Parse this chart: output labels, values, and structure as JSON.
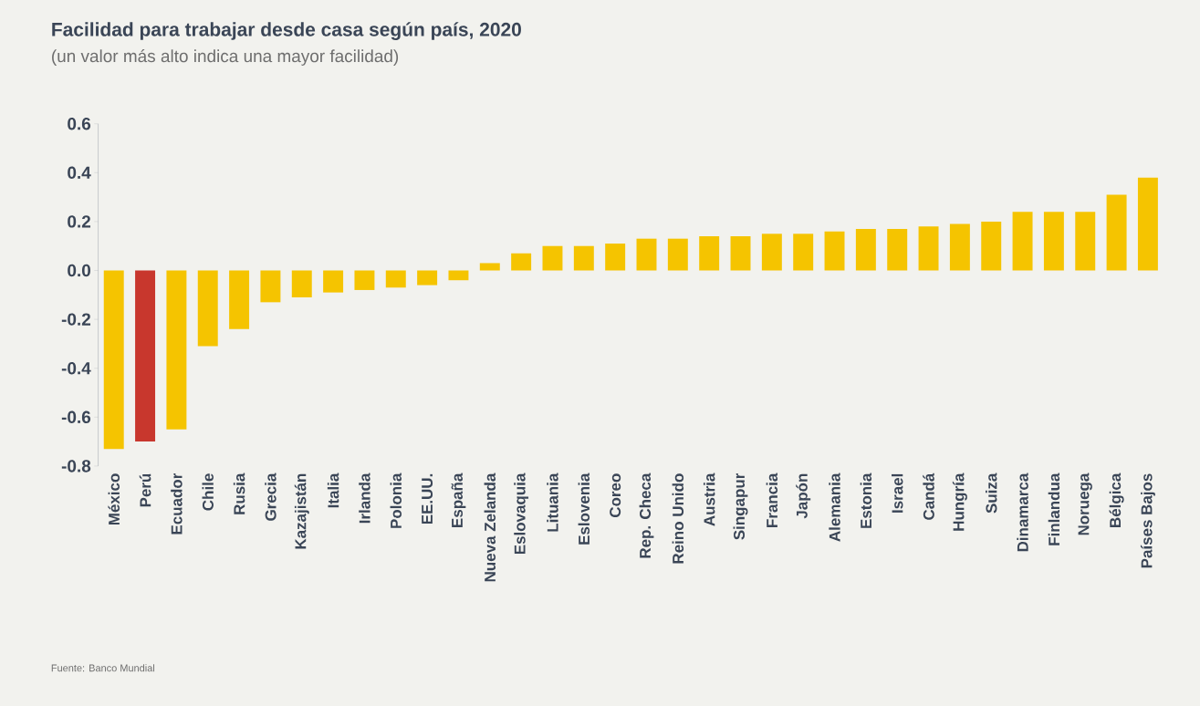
{
  "chart_data": {
    "type": "bar",
    "title": "Facilidad para trabajar desde casa según país, 2020",
    "subtitle": "(un valor más alto indica una mayor facilidad)",
    "categories": [
      "México",
      "Perú",
      "Ecuador",
      "Chile",
      "Rusia",
      "Grecia",
      "Kazajistán",
      "Italia",
      "Irlanda",
      "Polonia",
      "EE.UU.",
      "España",
      "Nueva Zelanda",
      "Eslovaquia",
      "Lituania",
      "Eslovenia",
      "Coreo",
      "Rep. Checa",
      "Reino Unido",
      "Austria",
      "Singapur",
      "Francia",
      "Japón",
      "Alemania",
      "Estonia",
      "Israel",
      "Candá",
      "Hungría",
      "Suiza",
      "Dinamarca",
      "Finlandua",
      "Noruega",
      "Bélgica",
      "Países Bajos"
    ],
    "values": [
      -0.73,
      -0.7,
      -0.65,
      -0.31,
      -0.24,
      -0.13,
      -0.11,
      -0.09,
      -0.08,
      -0.07,
      -0.06,
      -0.04,
      0.03,
      0.07,
      0.1,
      0.1,
      0.11,
      0.13,
      0.13,
      0.14,
      0.14,
      0.15,
      0.15,
      0.16,
      0.17,
      0.17,
      0.18,
      0.19,
      0.2,
      0.24,
      0.24,
      0.24,
      0.31,
      0.38
    ],
    "colors": [
      "#f5c400",
      "#c8372d",
      "#f5c400",
      "#f5c400",
      "#f5c400",
      "#f5c400",
      "#f5c400",
      "#f5c400",
      "#f5c400",
      "#f5c400",
      "#f5c400",
      "#f5c400",
      "#f5c400",
      "#f5c400",
      "#f5c400",
      "#f5c400",
      "#f5c400",
      "#f5c400",
      "#f5c400",
      "#f5c400",
      "#f5c400",
      "#f5c400",
      "#f5c400",
      "#f5c400",
      "#f5c400",
      "#f5c400",
      "#f5c400",
      "#f5c400",
      "#f5c400",
      "#f5c400",
      "#f5c400",
      "#f5c400",
      "#f5c400",
      "#f5c400"
    ],
    "ylim": [
      -0.8,
      0.6
    ],
    "yticks": [
      {
        "value": -0.8,
        "label": "-0.8"
      },
      {
        "value": -0.6,
        "label": "-0.6"
      },
      {
        "value": -0.4,
        "label": "-0.4"
      },
      {
        "value": -0.2,
        "label": "-0.2"
      },
      {
        "value": 0,
        "label": "0.0"
      },
      {
        "value": 0.2,
        "label": "0.2"
      },
      {
        "value": 0.4,
        "label": "0.4"
      },
      {
        "value": 0.6,
        "label": "0.6"
      }
    ],
    "annotations": [
      "Fuente: Banco Mundial"
    ]
  }
}
